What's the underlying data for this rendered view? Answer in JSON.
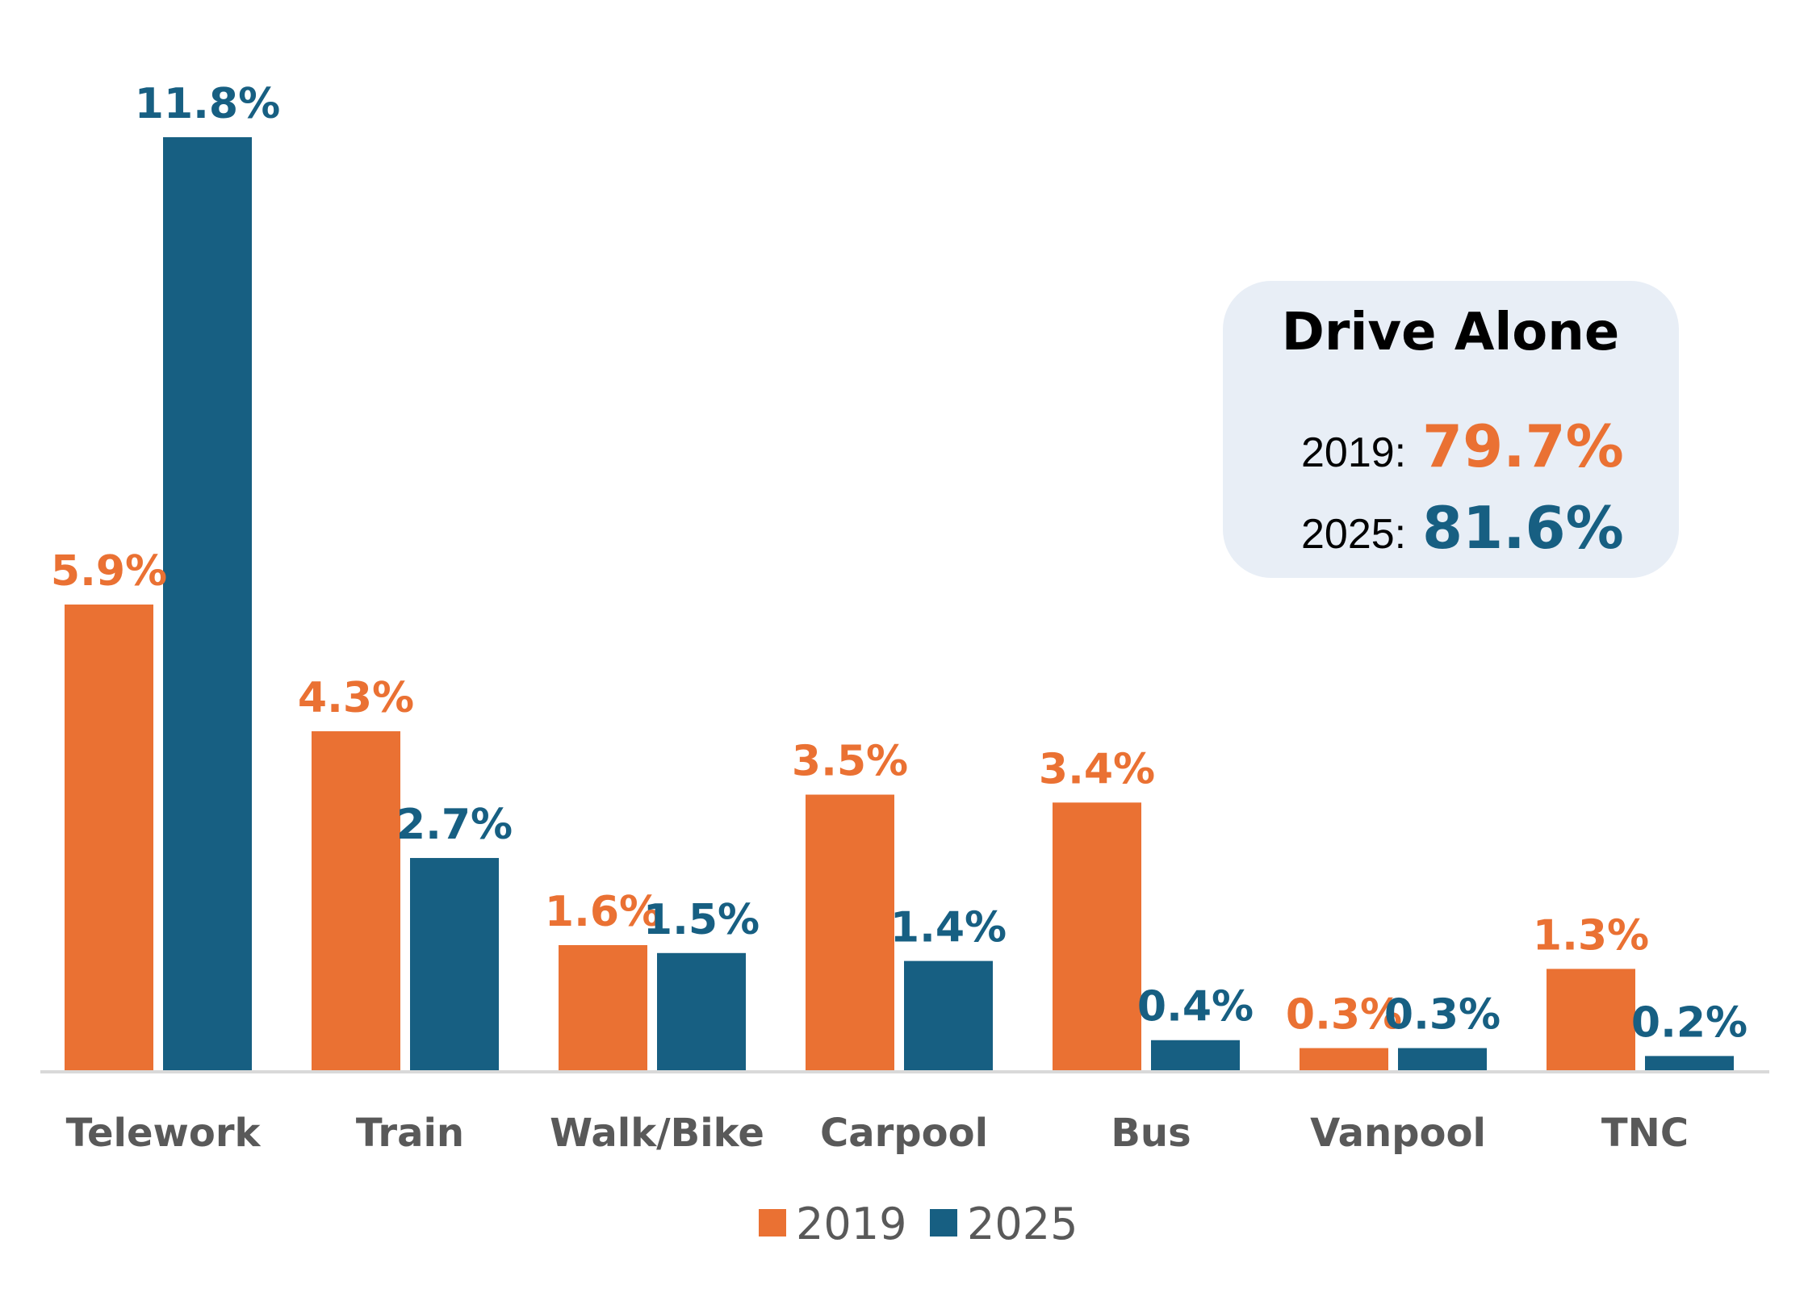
{
  "chart_data": {
    "type": "bar",
    "categories": [
      "Telework",
      "Train",
      "Walk/Bike",
      "Carpool",
      "Bus",
      "Vanpool",
      "TNC"
    ],
    "series": [
      {
        "name": "2019",
        "values": [
          5.9,
          4.3,
          1.6,
          3.5,
          3.4,
          0.3,
          1.3
        ],
        "labels": [
          "5.9%",
          "4.3%",
          "1.6%",
          "3.5%",
          "3.4%",
          "0.3%",
          "1.3%"
        ]
      },
      {
        "name": "2025",
        "values": [
          11.8,
          2.7,
          1.5,
          1.4,
          0.4,
          0.3,
          0.2
        ],
        "labels": [
          "11.8%",
          "2.7%",
          "1.5%",
          "1.4%",
          "0.4%",
          "0.3%",
          "0.2%"
        ]
      }
    ],
    "ylim": [
      0,
      11.8
    ],
    "grid": false,
    "legend_position": "bottom-center",
    "colors": {
      "2019": "#EA7133",
      "2025": "#175F82"
    }
  },
  "callout": {
    "title": "Drive Alone",
    "rows": [
      {
        "year_label": "2019:",
        "value": "79.7%",
        "series": "2019"
      },
      {
        "year_label": "2025:",
        "value": "81.6%",
        "series": "2025"
      }
    ],
    "background": "#E8EEF6"
  },
  "axis_color": "#D9D9D9"
}
